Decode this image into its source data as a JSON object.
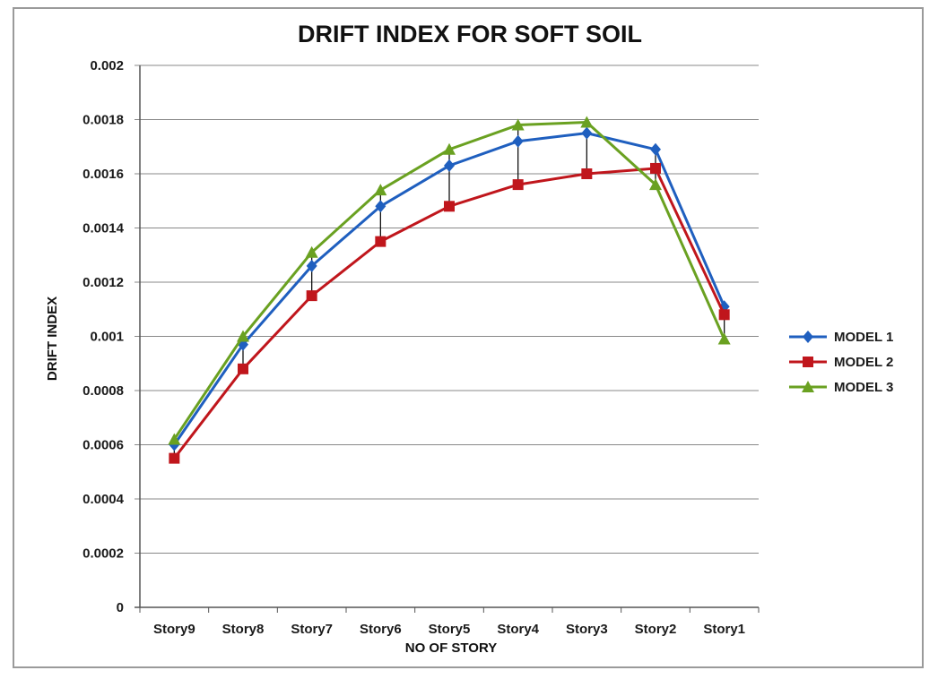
{
  "chart_data": {
    "type": "line",
    "title": "DRIFT INDEX FOR SOFT SOIL",
    "xlabel": "NO OF STORY",
    "ylabel": "DRIFT INDEX",
    "categories": [
      "Story9",
      "Story8",
      "Story7",
      "Story6",
      "Story5",
      "Story4",
      "Story3",
      "Story2",
      "Story1"
    ],
    "ylim": [
      0,
      0.002
    ],
    "yticks": [
      0,
      0.0002,
      0.0004,
      0.0006,
      0.0008,
      0.001,
      0.0012,
      0.0014,
      0.0016,
      0.0018,
      0.002
    ],
    "ytick_labels": [
      "0",
      "0.0002",
      "0.0004",
      "0.0006",
      "0.0008",
      "0.001",
      "0.0012",
      "0.0014",
      "0.0016",
      "0.0018",
      "0.002"
    ],
    "grid": true,
    "legend_position": "right",
    "series": [
      {
        "name": "MODEL 1",
        "color": "#1f5fbf",
        "marker": "diamond",
        "values": [
          0.0006,
          0.00097,
          0.00126,
          0.00148,
          0.00163,
          0.00172,
          0.00175,
          0.00169,
          0.00111
        ]
      },
      {
        "name": "MODEL 2",
        "color": "#c0161c",
        "marker": "square",
        "values": [
          0.00055,
          0.00088,
          0.00115,
          0.00135,
          0.00148,
          0.00156,
          0.0016,
          0.00162,
          0.00108
        ]
      },
      {
        "name": "MODEL 3",
        "color": "#6aa121",
        "marker": "triangle",
        "values": [
          0.00062,
          0.001,
          0.00131,
          0.00154,
          0.00169,
          0.00178,
          0.00179,
          0.00156,
          0.00099
        ]
      }
    ]
  }
}
